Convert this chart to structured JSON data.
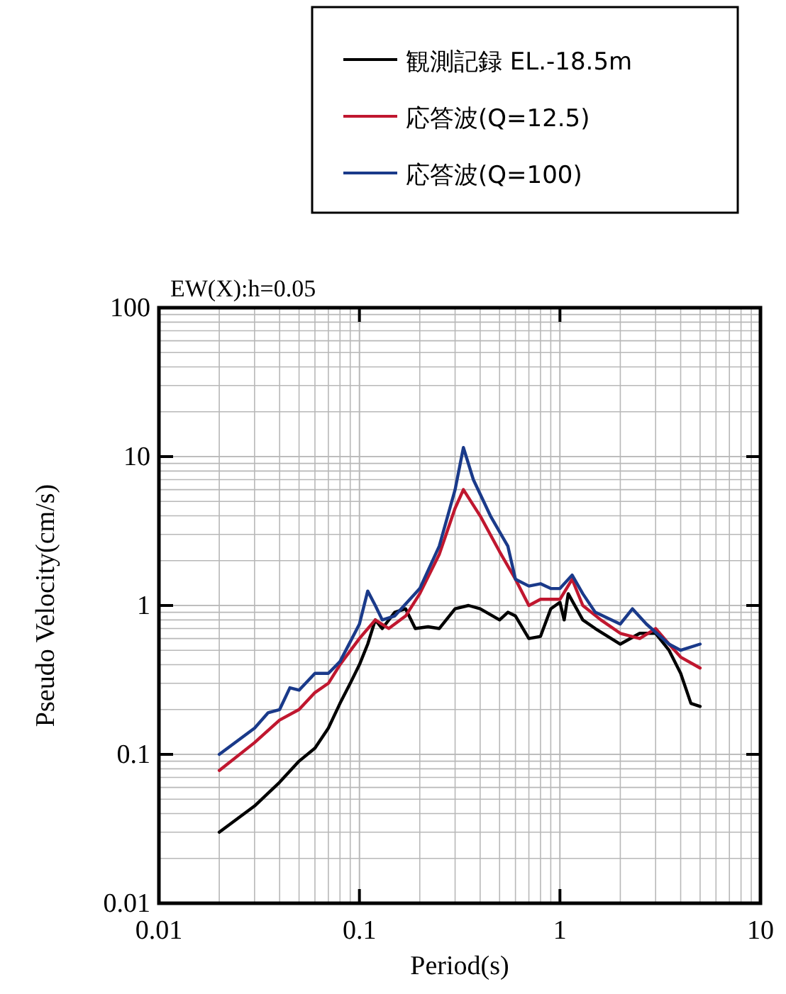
{
  "chart_data": {
    "type": "line",
    "title": "EW(X):h=0.05",
    "xlabel": "Period(s)",
    "ylabel": "Pseudo Velocity(cm/s)",
    "log": "xy",
    "grid": true,
    "legend": "top right",
    "xlim": [
      0.01,
      10
    ],
    "ylim": [
      0.01,
      100
    ],
    "xticks": [
      0.01,
      0.1,
      1,
      10
    ],
    "yticks": [
      0.01,
      0.1,
      1,
      10,
      100
    ],
    "series": [
      {
        "name": "観測記録 EL.-18.5m",
        "color": "#000000",
        "x": [
          0.02,
          0.03,
          0.04,
          0.05,
          0.06,
          0.07,
          0.08,
          0.09,
          0.1,
          0.11,
          0.12,
          0.13,
          0.15,
          0.17,
          0.19,
          0.22,
          0.25,
          0.3,
          0.35,
          0.4,
          0.5,
          0.55,
          0.6,
          0.7,
          0.8,
          0.9,
          1.0,
          1.05,
          1.1,
          1.3,
          1.5,
          2.0,
          2.5,
          3.0,
          3.5,
          4.0,
          4.5,
          5.0
        ],
        "values": [
          0.03,
          0.045,
          0.065,
          0.09,
          0.11,
          0.15,
          0.22,
          0.3,
          0.4,
          0.55,
          0.8,
          0.7,
          0.9,
          0.95,
          0.7,
          0.72,
          0.7,
          0.95,
          1.0,
          0.95,
          0.8,
          0.9,
          0.85,
          0.6,
          0.62,
          0.95,
          1.05,
          0.8,
          1.2,
          0.8,
          0.7,
          0.55,
          0.65,
          0.65,
          0.5,
          0.35,
          0.22,
          0.21
        ]
      },
      {
        "name": "応答波(Q=12.5)",
        "color": "#c0172f",
        "x": [
          0.02,
          0.03,
          0.04,
          0.05,
          0.06,
          0.07,
          0.08,
          0.1,
          0.12,
          0.14,
          0.17,
          0.2,
          0.25,
          0.3,
          0.33,
          0.4,
          0.5,
          0.6,
          0.7,
          0.8,
          1.0,
          1.15,
          1.3,
          1.6,
          2.0,
          2.5,
          3.0,
          3.5,
          4.0,
          5.0
        ],
        "values": [
          0.078,
          0.12,
          0.17,
          0.2,
          0.26,
          0.3,
          0.4,
          0.6,
          0.8,
          0.7,
          0.85,
          1.2,
          2.2,
          4.5,
          6.0,
          4.0,
          2.3,
          1.5,
          1.0,
          1.1,
          1.1,
          1.5,
          1.0,
          0.8,
          0.65,
          0.6,
          0.7,
          0.55,
          0.45,
          0.38
        ]
      },
      {
        "name": "応答波(Q=100)",
        "color": "#1a3a8a",
        "x": [
          0.02,
          0.03,
          0.035,
          0.04,
          0.045,
          0.05,
          0.06,
          0.07,
          0.08,
          0.1,
          0.11,
          0.12,
          0.13,
          0.15,
          0.2,
          0.25,
          0.3,
          0.33,
          0.37,
          0.45,
          0.55,
          0.6,
          0.7,
          0.8,
          0.9,
          1.0,
          1.15,
          1.3,
          1.5,
          2.0,
          2.3,
          2.7,
          3.5,
          4.0,
          5.0
        ],
        "values": [
          0.1,
          0.15,
          0.19,
          0.2,
          0.28,
          0.27,
          0.35,
          0.35,
          0.42,
          0.75,
          1.25,
          1.0,
          0.8,
          0.85,
          1.3,
          2.5,
          6.0,
          11.5,
          7.0,
          4.0,
          2.5,
          1.5,
          1.35,
          1.4,
          1.3,
          1.3,
          1.6,
          1.2,
          0.9,
          0.75,
          0.95,
          0.75,
          0.55,
          0.5,
          0.55
        ]
      }
    ]
  }
}
